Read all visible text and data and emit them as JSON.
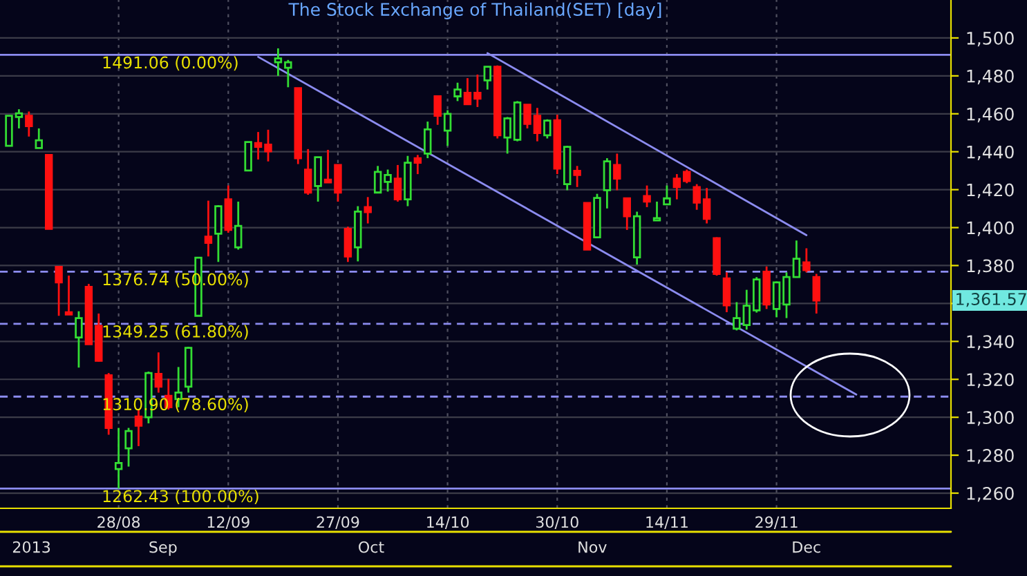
{
  "chart_data": {
    "type": "candlestick",
    "title": "The Stock Exchange of Thailand(SET) [day]",
    "categories": [
      null,
      null,
      null,
      null,
      null,
      null,
      null,
      null,
      null,
      null,
      null,
      "28/08",
      null,
      null,
      null,
      null,
      null,
      null,
      null,
      null,
      null,
      null,
      "12/09",
      null,
      null,
      null,
      null,
      null,
      null,
      null,
      null,
      null,
      null,
      "27/09",
      null,
      null,
      null,
      null,
      null,
      null,
      null,
      null,
      null,
      null,
      "14/10",
      null,
      null,
      null,
      null,
      null,
      null,
      null,
      null,
      null,
      null,
      "30/10",
      null,
      null,
      null,
      null,
      null,
      null,
      null,
      null,
      null,
      null,
      "14/11",
      null,
      null,
      null,
      null,
      null,
      null,
      null,
      null,
      null,
      null,
      "29/11",
      null,
      null,
      null,
      null,
      null,
      null,
      null,
      null,
      null,
      null,
      null,
      null,
      null,
      null,
      null,
      null,
      null
    ],
    "ohlc": [
      [
        1443.1,
        1459.0,
        1443.1,
        1459.0
      ],
      [
        1458.3,
        1462.4,
        1452.3,
        1460.2
      ],
      [
        1459.0,
        1461.2,
        1448.0,
        1453.5
      ],
      [
        1441.9,
        1452.3,
        1441.9,
        1446.0
      ],
      [
        1438.3,
        1438.3,
        1399.3,
        1399.3
      ],
      [
        1379.3,
        1379.3,
        1353.5,
        1371.1
      ],
      [
        1355.4,
        1374.7,
        1354.2,
        1354.2
      ],
      [
        1342.1,
        1355.9,
        1326.2,
        1352.3
      ],
      [
        1368.7,
        1370.3,
        1338.5,
        1338.5
      ],
      [
        1348.2,
        1354.7,
        1329.4,
        1329.8
      ],
      [
        1322.1,
        1323.3,
        1290.8,
        1294.4
      ],
      [
        1272.7,
        1294.4,
        1262.4,
        1275.9
      ],
      [
        1283.6,
        1294.4,
        1274.0,
        1292.7
      ],
      [
        1300.4,
        1304.1,
        1284.8,
        1295.6
      ],
      [
        1300.0,
        1324.1,
        1296.8,
        1323.3
      ],
      [
        1322.9,
        1334.2,
        1313.0,
        1316.1
      ],
      [
        1311.3,
        1320.3,
        1304.1,
        1305.3
      ],
      [
        1309.6,
        1326.5,
        1305.3,
        1313.0
      ],
      [
        1316.1,
        1337.1,
        1313.0,
        1336.6
      ],
      [
        1353.5,
        1384.1,
        1353.5,
        1384.1
      ],
      [
        1395.2,
        1414.2,
        1384.8,
        1392.0
      ],
      [
        1396.8,
        1411.8,
        1381.9,
        1411.3
      ],
      [
        1414.9,
        1422.2,
        1397.3,
        1398.8
      ],
      [
        1389.6,
        1413.7,
        1388.4,
        1400.9
      ],
      [
        1430.1,
        1445.1,
        1430.1,
        1445.1
      ],
      [
        1444.6,
        1450.4,
        1435.9,
        1442.6
      ],
      [
        1443.8,
        1451.6,
        1434.9,
        1440.2
      ],
      [
        1487.2,
        1494.5,
        1480.0,
        1489.2
      ],
      [
        1484.3,
        1488.4,
        1474.0,
        1487.2
      ],
      [
        1473.5,
        1473.5,
        1433.5,
        1436.6
      ],
      [
        1430.6,
        1441.4,
        1417.3,
        1418.5
      ],
      [
        1421.9,
        1437.1,
        1413.7,
        1437.1
      ],
      [
        1425.3,
        1441.0,
        1423.8,
        1423.8
      ],
      [
        1433.0,
        1433.0,
        1413.7,
        1418.5
      ],
      [
        1399.3,
        1400.5,
        1381.9,
        1384.8
      ],
      [
        1389.6,
        1411.3,
        1382.2,
        1408.4
      ],
      [
        1410.8,
        1416.1,
        1402.2,
        1408.2
      ],
      [
        1418.5,
        1432.5,
        1418.1,
        1429.4
      ],
      [
        1424.1,
        1430.6,
        1419.0,
        1427.7
      ],
      [
        1425.8,
        1433.0,
        1413.7,
        1414.9
      ],
      [
        1414.9,
        1437.8,
        1411.3,
        1434.2
      ],
      [
        1436.6,
        1438.3,
        1428.2,
        1434.2
      ],
      [
        1439.0,
        1455.9,
        1436.6,
        1451.8
      ],
      [
        1469.2,
        1469.6,
        1454.2,
        1459.0
      ],
      [
        1451.1,
        1461.9,
        1443.1,
        1460.0
      ],
      [
        1469.2,
        1476.4,
        1466.7,
        1472.8
      ],
      [
        1471.1,
        1478.8,
        1465.1,
        1465.1
      ],
      [
        1471.1,
        1480.7,
        1463.6,
        1468.0
      ],
      [
        1477.6,
        1484.8,
        1472.8,
        1484.8
      ],
      [
        1484.8,
        1485.5,
        1447.0,
        1448.7
      ],
      [
        1447.5,
        1458.3,
        1439.0,
        1457.6
      ],
      [
        1446.3,
        1466.7,
        1445.5,
        1466.0
      ],
      [
        1464.8,
        1464.8,
        1452.3,
        1454.7
      ],
      [
        1459.0,
        1463.1,
        1445.5,
        1449.9
      ],
      [
        1448.7,
        1457.1,
        1447.0,
        1456.4
      ],
      [
        1456.6,
        1459.5,
        1428.2,
        1431.1
      ],
      [
        1422.9,
        1443.1,
        1419.7,
        1442.6
      ],
      [
        1429.9,
        1432.5,
        1421.4,
        1427.7
      ],
      [
        1413.0,
        1413.0,
        1388.4,
        1388.4
      ],
      [
        1394.9,
        1417.8,
        1394.4,
        1415.6
      ],
      [
        1419.7,
        1436.6,
        1410.1,
        1434.9
      ],
      [
        1433.0,
        1439.0,
        1419.7,
        1425.8
      ],
      [
        1415.4,
        1415.4,
        1398.8,
        1406.0
      ],
      [
        1384.3,
        1408.4,
        1380.5,
        1406.0
      ],
      [
        1416.6,
        1422.2,
        1410.8,
        1413.7
      ],
      [
        1403.8,
        1413.7,
        1403.8,
        1405.0
      ],
      [
        1412.3,
        1422.2,
        1412.3,
        1415.4
      ],
      [
        1425.8,
        1428.2,
        1414.9,
        1421.4
      ],
      [
        1429.4,
        1430.6,
        1423.4,
        1424.6
      ],
      [
        1421.4,
        1422.9,
        1409.4,
        1413.2
      ],
      [
        1414.9,
        1420.9,
        1402.2,
        1404.6
      ],
      [
        1394.4,
        1394.9,
        1374.7,
        1375.6
      ],
      [
        1373.2,
        1376.4,
        1355.4,
        1359.0
      ],
      [
        1346.7,
        1360.7,
        1345.8,
        1352.3
      ],
      [
        1348.6,
        1367.2,
        1346.2,
        1358.8
      ],
      [
        1356.4,
        1373.9,
        1355.2,
        1372.7
      ],
      [
        1376.8,
        1379.5,
        1357.1,
        1359.5
      ],
      [
        1357.1,
        1371.6,
        1352.7,
        1371.1
      ],
      [
        1359.5,
        1376.4,
        1352.3,
        1373.9
      ],
      [
        1373.9,
        1393.2,
        1373.9,
        1383.6
      ],
      [
        1381.7,
        1389.1,
        1376.4,
        1377.6
      ],
      [
        1373.9,
        1375.6,
        1354.7,
        1361.57
      ],
      null,
      null,
      null,
      null,
      null,
      null,
      null,
      null,
      null,
      null,
      null,
      null,
      null
    ],
    "series": [
      {
        "type": "line",
        "color": "#8c8cf0",
        "values": [
          null,
          null,
          null,
          null,
          null,
          null,
          null,
          null,
          null,
          null,
          null,
          null,
          null,
          null,
          null,
          null,
          null,
          null,
          null,
          null,
          null,
          null,
          null,
          null,
          null,
          1490,
          null,
          null,
          null,
          null,
          null,
          null,
          null,
          null,
          null,
          null,
          null,
          null,
          null,
          null,
          null,
          null,
          null,
          null,
          null,
          null,
          null,
          null,
          null,
          null,
          null,
          null,
          null,
          null,
          null,
          null,
          null,
          null,
          null,
          null,
          null,
          null,
          null,
          null,
          null,
          null,
          null,
          null,
          null,
          null,
          null,
          null,
          null,
          null,
          null,
          null,
          null,
          null,
          null,
          null,
          null,
          null,
          null,
          null,
          null,
          1312,
          null,
          null,
          null,
          null,
          null,
          null,
          null,
          null,
          null
        ]
      },
      {
        "type": "line",
        "color": "#8c8cf0",
        "values": [
          null,
          null,
          null,
          null,
          null,
          null,
          null,
          null,
          null,
          null,
          null,
          null,
          null,
          null,
          null,
          null,
          null,
          null,
          null,
          null,
          null,
          null,
          null,
          null,
          null,
          null,
          null,
          null,
          null,
          null,
          null,
          null,
          null,
          null,
          null,
          null,
          null,
          null,
          null,
          null,
          null,
          null,
          null,
          null,
          null,
          null,
          null,
          null,
          1492,
          null,
          null,
          null,
          null,
          null,
          null,
          null,
          null,
          null,
          null,
          null,
          null,
          null,
          null,
          null,
          null,
          null,
          null,
          null,
          null,
          null,
          null,
          null,
          null,
          null,
          null,
          null,
          null,
          null,
          null,
          null,
          1396,
          null,
          null,
          null,
          null,
          null,
          null,
          null,
          null,
          null,
          null,
          null,
          null,
          null,
          null
        ]
      }
    ],
    "ylim": [
      1252,
      1520
    ],
    "yticks": [
      {
        "value": 1260,
        "label": "1,260"
      },
      {
        "value": 1280,
        "label": "1,280"
      },
      {
        "value": 1300,
        "label": "1,300"
      },
      {
        "value": 1320,
        "label": "1,320"
      },
      {
        "value": 1340,
        "label": "1,340"
      },
      {
        "value": 1360,
        "label": null
      },
      {
        "value": 1380,
        "label": "1,380"
      },
      {
        "value": 1400,
        "label": "1,400"
      },
      {
        "value": 1420,
        "label": "1,420"
      },
      {
        "value": 1440,
        "label": "1,440"
      },
      {
        "value": 1460,
        "label": "1,460"
      },
      {
        "value": 1480,
        "label": "1,480"
      },
      {
        "value": 1500,
        "label": "1,500"
      }
    ],
    "ref_lines": [
      {
        "axis": "y",
        "value": 1491.06,
        "label": "1491.06 (0.00%)",
        "color": "#8c8cf0",
        "line_style": "solid"
      },
      {
        "axis": "y",
        "value": 1376.74,
        "label": "1376.74 (50.00%)",
        "color": "#8c8cf0",
        "line_style": "dashed"
      },
      {
        "axis": "y",
        "value": 1349.25,
        "label": "1349.25 (61.80%)",
        "color": "#8c8cf0",
        "line_style": "dashed"
      },
      {
        "axis": "y",
        "value": 1310.9,
        "label": "1310.90 (78.60%)",
        "color": "#8c8cf0",
        "line_style": "dashed"
      },
      {
        "axis": "y",
        "value": 1262.43,
        "label": "1262.43 (100.00%)",
        "color": "#8c8cf0",
        "line_style": "solid"
      }
    ],
    "annotations": [
      "1,361.57",
      "2013",
      "Sep",
      "Oct",
      "Nov",
      "Dec"
    ],
    "grid": true,
    "legend": false
  }
}
